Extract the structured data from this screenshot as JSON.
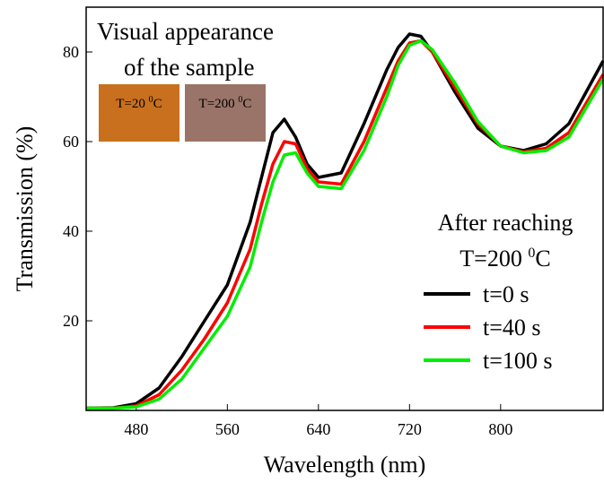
{
  "chart_data": {
    "type": "line",
    "xlabel": "Wavelength (nm)",
    "ylabel": "Transmission (%)",
    "x": [
      436,
      460,
      480,
      500,
      520,
      540,
      560,
      580,
      590,
      600,
      610,
      620,
      630,
      640,
      660,
      680,
      700,
      710,
      720,
      730,
      740,
      760,
      780,
      800,
      820,
      840,
      860,
      890
    ],
    "series": [
      {
        "name": "t=0 s",
        "color": "#000000",
        "values": [
          0.5,
          0.6,
          1.5,
          5,
          12,
          20,
          28,
          42,
          52,
          62,
          65,
          61,
          55,
          52,
          53,
          64,
          76,
          81,
          84,
          83.5,
          80,
          71,
          63,
          59,
          58,
          59.5,
          64,
          78
        ]
      },
      {
        "name": "t=40 s",
        "color": "#ff0000",
        "values": [
          0.5,
          0.5,
          1,
          3.5,
          9,
          16,
          24,
          36,
          46,
          55,
          60,
          59.5,
          54,
          51,
          50.5,
          60,
          72,
          78,
          82,
          82.5,
          80,
          72,
          64,
          59,
          57.7,
          58.5,
          62,
          75
        ]
      },
      {
        "name": "t=100 s",
        "color": "#00ee00",
        "values": [
          0.5,
          0.5,
          0.8,
          2.5,
          7,
          14,
          21,
          32,
          42,
          51,
          57,
          57.5,
          53,
          50,
          49.5,
          58,
          70,
          77,
          81.5,
          82.5,
          80.5,
          73,
          64.5,
          59,
          57.5,
          58,
          61,
          74
        ]
      }
    ],
    "xlim": [
      436,
      890
    ],
    "ylim": [
      0,
      90
    ],
    "xticks": [
      480,
      560,
      640,
      720,
      800
    ],
    "yticks": [
      20,
      40,
      60,
      80
    ],
    "grid": false,
    "legend_position": "right",
    "legend_title": {
      "line1": "After reaching",
      "line2": {
        "text": "T=200 ",
        "sup": "0",
        "unit": "C"
      }
    },
    "inset": {
      "line1": "Visual appearance",
      "line2": "of  the sample",
      "swatches": [
        {
          "text": "T=20 ",
          "sup": "0",
          "unit": "C",
          "color": "#c8701e"
        },
        {
          "text": "T=200 ",
          "sup": "0",
          "unit": "C",
          "color": "#9a7468"
        }
      ]
    }
  }
}
